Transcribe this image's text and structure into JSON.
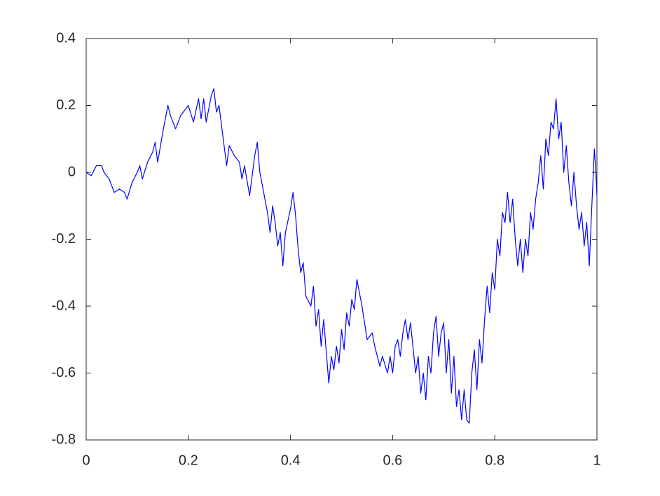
{
  "chart_data": {
    "type": "line",
    "color": "#0000ff",
    "xlim": [
      0,
      1
    ],
    "ylim": [
      -0.8,
      0.4
    ],
    "xticks": [
      0,
      0.2,
      0.4,
      0.6,
      0.8,
      1
    ],
    "yticks": [
      -0.8,
      -0.6,
      -0.4,
      -0.2,
      0,
      0.2,
      0.4
    ],
    "x": [
      0,
      0.01,
      0.02,
      0.03,
      0.035,
      0.045,
      0.055,
      0.065,
      0.075,
      0.08,
      0.09,
      0.1,
      0.105,
      0.11,
      0.12,
      0.13,
      0.135,
      0.14,
      0.15,
      0.16,
      0.165,
      0.175,
      0.185,
      0.195,
      0.2,
      0.21,
      0.22,
      0.225,
      0.23,
      0.235,
      0.245,
      0.25,
      0.255,
      0.26,
      0.27,
      0.275,
      0.28,
      0.29,
      0.3,
      0.305,
      0.31,
      0.32,
      0.33,
      0.335,
      0.34,
      0.35,
      0.355,
      0.36,
      0.365,
      0.37,
      0.375,
      0.38,
      0.385,
      0.39,
      0.4,
      0.405,
      0.41,
      0.415,
      0.42,
      0.425,
      0.43,
      0.44,
      0.445,
      0.45,
      0.455,
      0.46,
      0.465,
      0.475,
      0.48,
      0.485,
      0.49,
      0.495,
      0.5,
      0.505,
      0.51,
      0.515,
      0.52,
      0.525,
      0.53,
      0.54,
      0.545,
      0.55,
      0.56,
      0.565,
      0.575,
      0.58,
      0.59,
      0.595,
      0.6,
      0.605,
      0.61,
      0.615,
      0.62,
      0.625,
      0.63,
      0.635,
      0.645,
      0.65,
      0.655,
      0.66,
      0.665,
      0.67,
      0.675,
      0.68,
      0.685,
      0.69,
      0.695,
      0.7,
      0.705,
      0.71,
      0.715,
      0.72,
      0.725,
      0.73,
      0.735,
      0.74,
      0.745,
      0.75,
      0.755,
      0.76,
      0.765,
      0.77,
      0.775,
      0.78,
      0.785,
      0.79,
      0.795,
      0.8,
      0.805,
      0.81,
      0.815,
      0.82,
      0.825,
      0.83,
      0.835,
      0.84,
      0.845,
      0.85,
      0.855,
      0.86,
      0.865,
      0.87,
      0.875,
      0.88,
      0.885,
      0.89,
      0.895,
      0.9,
      0.905,
      0.91,
      0.915,
      0.92,
      0.925,
      0.93,
      0.935,
      0.94,
      0.945,
      0.95,
      0.955,
      0.96,
      0.965,
      0.97,
      0.975,
      0.98,
      0.985,
      0.99,
      0.995,
      0.998,
      1
    ],
    "y": [
      0,
      -0.01,
      0.02,
      0.02,
      0.0,
      -0.02,
      -0.06,
      -0.05,
      -0.06,
      -0.08,
      -0.03,
      0.0,
      0.02,
      -0.02,
      0.03,
      0.06,
      0.09,
      0.03,
      0.12,
      0.2,
      0.17,
      0.13,
      0.17,
      0.19,
      0.2,
      0.15,
      0.22,
      0.16,
      0.22,
      0.15,
      0.23,
      0.25,
      0.18,
      0.2,
      0.08,
      0.02,
      0.08,
      0.05,
      0.03,
      -0.02,
      0.02,
      -0.07,
      0.05,
      0.09,
      0.0,
      -0.08,
      -0.12,
      -0.18,
      -0.1,
      -0.15,
      -0.22,
      -0.18,
      -0.28,
      -0.18,
      -0.11,
      -0.06,
      -0.13,
      -0.23,
      -0.3,
      -0.27,
      -0.37,
      -0.4,
      -0.34,
      -0.46,
      -0.41,
      -0.52,
      -0.44,
      -0.63,
      -0.55,
      -0.59,
      -0.52,
      -0.57,
      -0.47,
      -0.53,
      -0.42,
      -0.46,
      -0.38,
      -0.41,
      -0.32,
      -0.4,
      -0.45,
      -0.5,
      -0.48,
      -0.52,
      -0.58,
      -0.55,
      -0.6,
      -0.55,
      -0.6,
      -0.52,
      -0.5,
      -0.55,
      -0.48,
      -0.44,
      -0.5,
      -0.45,
      -0.6,
      -0.55,
      -0.66,
      -0.6,
      -0.68,
      -0.55,
      -0.6,
      -0.48,
      -0.43,
      -0.55,
      -0.48,
      -0.45,
      -0.6,
      -0.5,
      -0.66,
      -0.55,
      -0.7,
      -0.65,
      -0.74,
      -0.65,
      -0.74,
      -0.75,
      -0.6,
      -0.53,
      -0.65,
      -0.5,
      -0.57,
      -0.44,
      -0.34,
      -0.42,
      -0.3,
      -0.35,
      -0.2,
      -0.25,
      -0.12,
      -0.15,
      -0.06,
      -0.15,
      -0.08,
      -0.2,
      -0.28,
      -0.2,
      -0.3,
      -0.2,
      -0.25,
      -0.12,
      -0.17,
      -0.08,
      -0.03,
      0.05,
      -0.05,
      0.1,
      0.05,
      0.15,
      0.13,
      0.22,
      0.1,
      0.15,
      0.0,
      0.08,
      -0.03,
      -0.1,
      0.0,
      -0.1,
      -0.17,
      -0.12,
      -0.22,
      -0.15,
      -0.28,
      -0.1,
      0.07,
      0.0,
      -0.07
    ]
  }
}
